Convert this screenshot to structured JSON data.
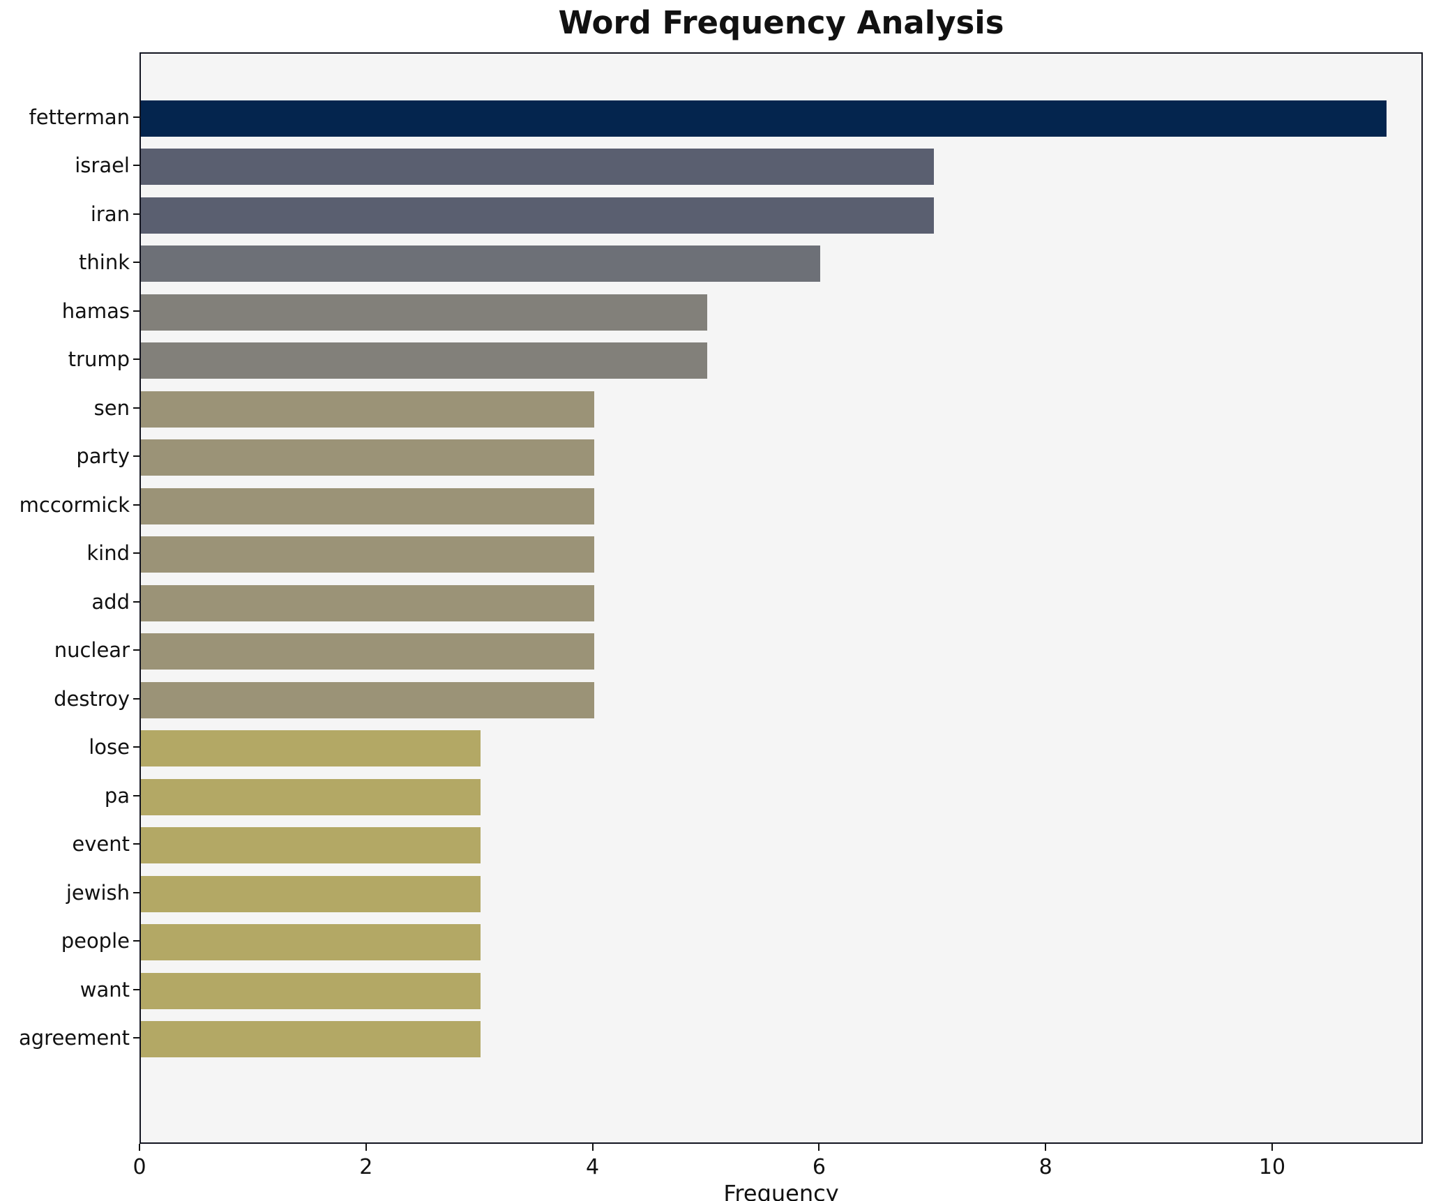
{
  "chart_data": {
    "type": "bar",
    "orientation": "horizontal",
    "title": "Word Frequency Analysis",
    "xlabel": "Frequency",
    "ylabel": "",
    "grid": false,
    "legend": "none",
    "plot_background": "#f5f5f5",
    "frame_color": "#121420",
    "xlim": [
      0,
      11.33
    ],
    "x_ticks": [
      0,
      2,
      4,
      6,
      8,
      10
    ],
    "categories": [
      "fetterman",
      "israel",
      "iran",
      "think",
      "hamas",
      "trump",
      "sen",
      "party",
      "mccormick",
      "kind",
      "add",
      "nuclear",
      "destroy",
      "lose",
      "pa",
      "event",
      "jewish",
      "people",
      "want",
      "agreement"
    ],
    "values": [
      11,
      7,
      7,
      6,
      5,
      5,
      4,
      4,
      4,
      4,
      4,
      4,
      4,
      3,
      3,
      3,
      3,
      3,
      3,
      3
    ],
    "colors": [
      "#04254e",
      "#5a5f70",
      "#5a5f70",
      "#6d7077",
      "#82807a",
      "#82807a",
      "#9b9377",
      "#9b9377",
      "#9b9377",
      "#9b9377",
      "#9b9377",
      "#9b9377",
      "#9b9377",
      "#b3a865",
      "#b3a865",
      "#b3a865",
      "#b3a865",
      "#b3a865",
      "#b3a865",
      "#b3a865"
    ]
  }
}
